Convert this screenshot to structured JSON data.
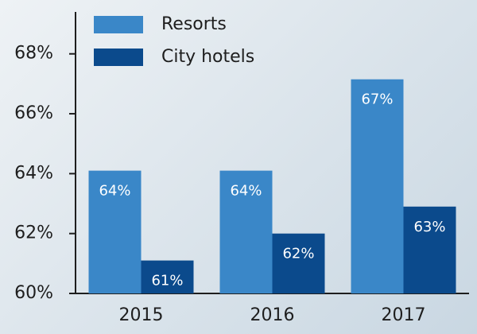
{
  "chart_data": {
    "type": "bar",
    "categories": [
      "2015",
      "2016",
      "2017"
    ],
    "series": [
      {
        "name": "Resorts",
        "color": "#3a87c8",
        "values": [
          64.1,
          64.1,
          67.15
        ],
        "value_labels": [
          "64%",
          "64%",
          "67%"
        ]
      },
      {
        "name": "City hotels",
        "color": "#0b4a8c",
        "values": [
          61.1,
          62,
          62.9
        ],
        "value_labels": [
          "61%",
          "62%",
          "63%"
        ]
      }
    ],
    "ylim": [
      60,
      69.4
    ],
    "yticks": [
      {
        "value": 60,
        "label": "60%"
      },
      {
        "value": 62,
        "label": "62%"
      },
      {
        "value": 64,
        "label": "64%"
      },
      {
        "value": 66,
        "label": "66%"
      },
      {
        "value": 68,
        "label": "68%"
      }
    ],
    "legend": "top-left"
  }
}
